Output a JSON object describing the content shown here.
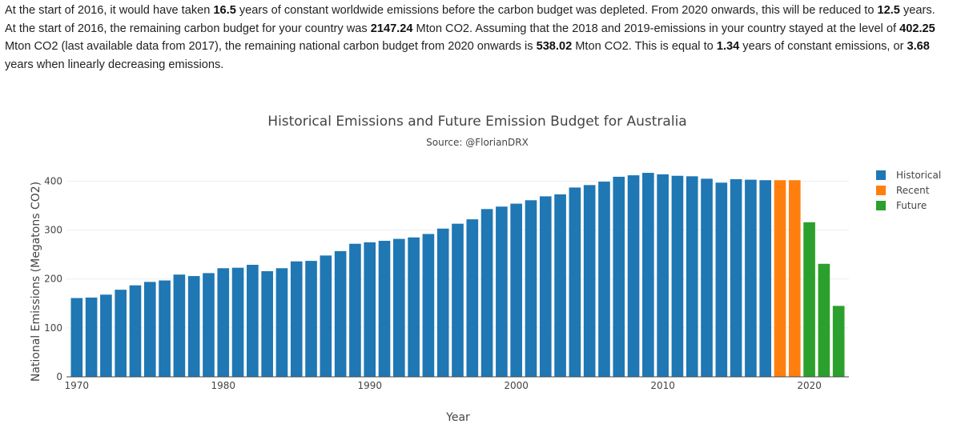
{
  "summary": {
    "p1_a": "At the start of 2016, it would have taken ",
    "p1_b": "16.5",
    "p1_c": " years of constant worldwide emissions before the carbon budget was depleted. From 2020 onwards, this will be reduced to ",
    "p1_d": "12.5",
    "p1_e": " years.",
    "p2_a": "At the start of 2016, the remaining carbon budget for your country was ",
    "p2_b": "2147.24",
    "p2_c": " Mton CO2. Assuming that the 2018 and 2019-emissions in your country stayed at the level of ",
    "p2_d": "402.25",
    "p2_e": " Mton CO2 (last available data from 2017), the remaining national carbon budget from 2020 onwards is ",
    "p2_f": "538.02",
    "p2_g": " Mton CO2. This is equal to ",
    "p2_h": "1.34",
    "p2_i": " years of constant emissions, or ",
    "p2_j": "3.68",
    "p2_k": " years when linearly decreasing emissions."
  },
  "chart_data": {
    "type": "bar",
    "title": "Historical Emissions and Future Emission Budget for Australia",
    "subtitle": "Source: @FlorianDRX",
    "xlabel": "Year",
    "ylabel": "National Emissions (Megatons CO2)",
    "xlim": [
      1969.3,
      2022.7
    ],
    "ylim": [
      0,
      440
    ],
    "x_ticks": [
      1970,
      1980,
      1990,
      2000,
      2010,
      2020
    ],
    "y_ticks": [
      0,
      100,
      200,
      300,
      400
    ],
    "grid": true,
    "legend_position": "top-right",
    "series": [
      {
        "name": "Historical",
        "color": "#1f77b4",
        "x": [
          1970,
          1971,
          1972,
          1973,
          1974,
          1975,
          1976,
          1977,
          1978,
          1979,
          1980,
          1981,
          1982,
          1983,
          1984,
          1985,
          1986,
          1987,
          1988,
          1989,
          1990,
          1991,
          1992,
          1993,
          1994,
          1995,
          1996,
          1997,
          1998,
          1999,
          2000,
          2001,
          2002,
          2003,
          2004,
          2005,
          2006,
          2007,
          2008,
          2009,
          2010,
          2011,
          2012,
          2013,
          2014,
          2015,
          2016,
          2017
        ],
        "values": [
          161,
          162,
          168,
          178,
          187,
          194,
          197,
          209,
          206,
          212,
          222,
          223,
          229,
          216,
          222,
          236,
          237,
          248,
          257,
          272,
          275,
          278,
          282,
          285,
          292,
          303,
          313,
          322,
          343,
          348,
          354,
          361,
          369,
          373,
          387,
          392,
          399,
          409,
          412,
          417,
          414,
          411,
          410,
          405,
          397,
          404,
          403,
          402
        ]
      },
      {
        "name": "Recent",
        "color": "#ff7f0e",
        "x": [
          2018,
          2019
        ],
        "values": [
          402,
          402
        ]
      },
      {
        "name": "Future",
        "color": "#2ca02c",
        "x": [
          2020,
          2021,
          2022
        ],
        "values": [
          316,
          231,
          145
        ]
      }
    ]
  }
}
